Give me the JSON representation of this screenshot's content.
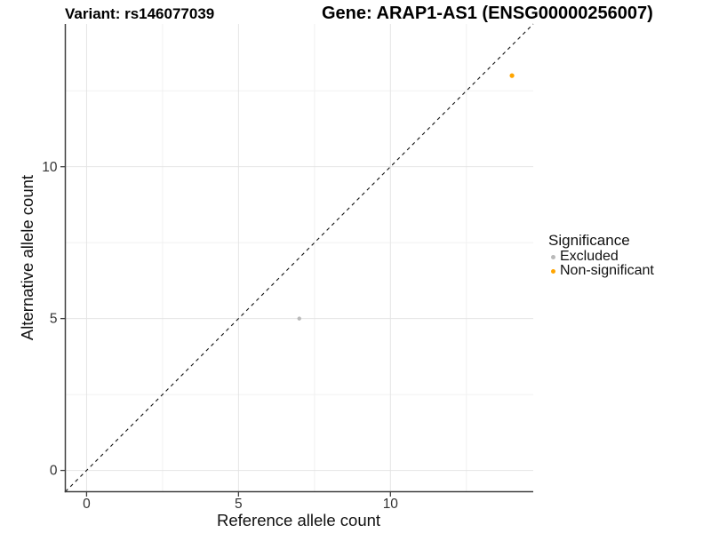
{
  "header": {
    "variant_title": "Variant: rs146077039",
    "gene_title": "Gene: ARAP1-AS1 (ENSG00000256007)"
  },
  "legend": {
    "title": "Significance",
    "items": [
      {
        "label": "Excluded",
        "color": "#b9b9b9"
      },
      {
        "label": "Non-significant",
        "color": "#ffa500"
      }
    ]
  },
  "chart_data": {
    "type": "scatter",
    "xlabel": "Reference allele count",
    "ylabel": "Alternative allele count",
    "xlim": [
      -0.7,
      14.7
    ],
    "ylim": [
      -0.7,
      14.7
    ],
    "x_major_ticks": [
      0,
      5,
      10
    ],
    "y_major_ticks": [
      0,
      5,
      10
    ],
    "x_minor_ticks": [
      2.5,
      7.5,
      12.5
    ],
    "y_minor_ticks": [
      2.5,
      7.5,
      12.5
    ],
    "grid": true,
    "legend_position": "right",
    "series": [
      {
        "name": "Excluded",
        "color": "#b9b9b9",
        "marker_radius": 2.2,
        "points": [
          {
            "x": 7,
            "y": 5
          }
        ]
      },
      {
        "name": "Non-significant",
        "color": "#ffa500",
        "marker_radius": 2.6,
        "points": [
          {
            "x": 14,
            "y": 13
          }
        ]
      }
    ],
    "reference_line": {
      "kind": "identity",
      "slope": 1,
      "intercept": 0,
      "style": "dashed",
      "dash": "4 4",
      "color": "#111111"
    },
    "colors": {
      "grid_major": "#e4e4e4",
      "grid_minor": "#f1f1f1",
      "axis_line": "#404040",
      "tick_label": "#333333"
    }
  }
}
